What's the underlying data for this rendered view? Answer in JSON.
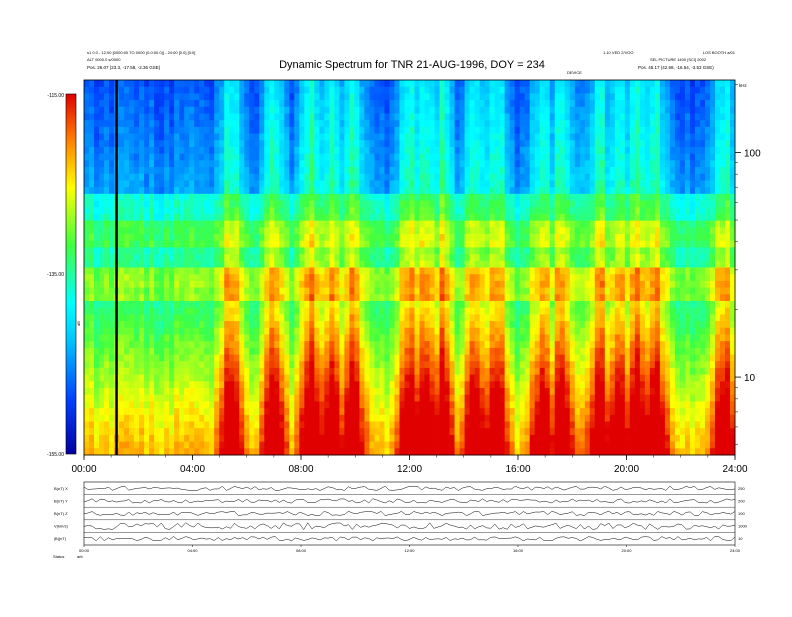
{
  "chart_data": {
    "type": "heatmap",
    "title": "Dynamic Spectrum for TNR 21-AUG-1996, DOY = 234",
    "header_left": [
      "s1 0.0 - 12:00 [0000:00 TO 0000 (0.0:00.0)] - 24:00 [0.0] [0:0]",
      "ALT 0000.0 s/0000",
      "Pos.    26.07 (23.3, -17.58, -2.36 GSE)"
    ],
    "header_right_top": "1.10 VED 2/VOO",
    "header_right_far": "LOS BOOTH a/01",
    "header_right_mid": "SEL PICTURE 1400 [SCI] 2002",
    "header_right_pos": "Pos.    45.17 (42.58, -16.54, -3.53 GSE)",
    "header_mid_label": "DEVICE",
    "y_right_unit_label": "kHz",
    "x_ticks": [
      "00:00",
      "04:00",
      "08:00",
      "12:00",
      "16:00",
      "20:00",
      "24:00"
    ],
    "x_hour_range": [
      0,
      24
    ],
    "y_ticks_khz": [
      10,
      100
    ],
    "ylim_khz": [
      4.5,
      210
    ],
    "y_scale": "log",
    "colorbar": {
      "ticks": [
        "-115.00",
        "-135.00",
        "-155.00"
      ],
      "range": [
        -155,
        -115
      ],
      "label": "dB"
    },
    "marker_time_hours": 1.2,
    "bursts_hours": [
      5.4,
      7.0,
      8.4,
      9.1,
      9.9,
      12.0,
      12.6,
      13.2,
      14.4,
      15.2,
      16.9,
      17.6,
      19.0,
      19.7,
      20.4,
      21.1,
      23.6
    ],
    "time_series": {
      "x_ticks": [
        "00:00",
        "04:00",
        "08:00",
        "12:00",
        "16:00",
        "20:00",
        "24:00"
      ],
      "panels": [
        {
          "label": "B(nT) X",
          "right": "250"
        },
        {
          "label": "B(nT) Y",
          "right": "200"
        },
        {
          "label": "B(nT) Z",
          "right": "100"
        },
        {
          "label": "V(km/s)",
          "right": "1000"
        },
        {
          "label": "|B|(nT)",
          "right": "10"
        }
      ],
      "footer": [
        "Status",
        "arb"
      ]
    }
  }
}
